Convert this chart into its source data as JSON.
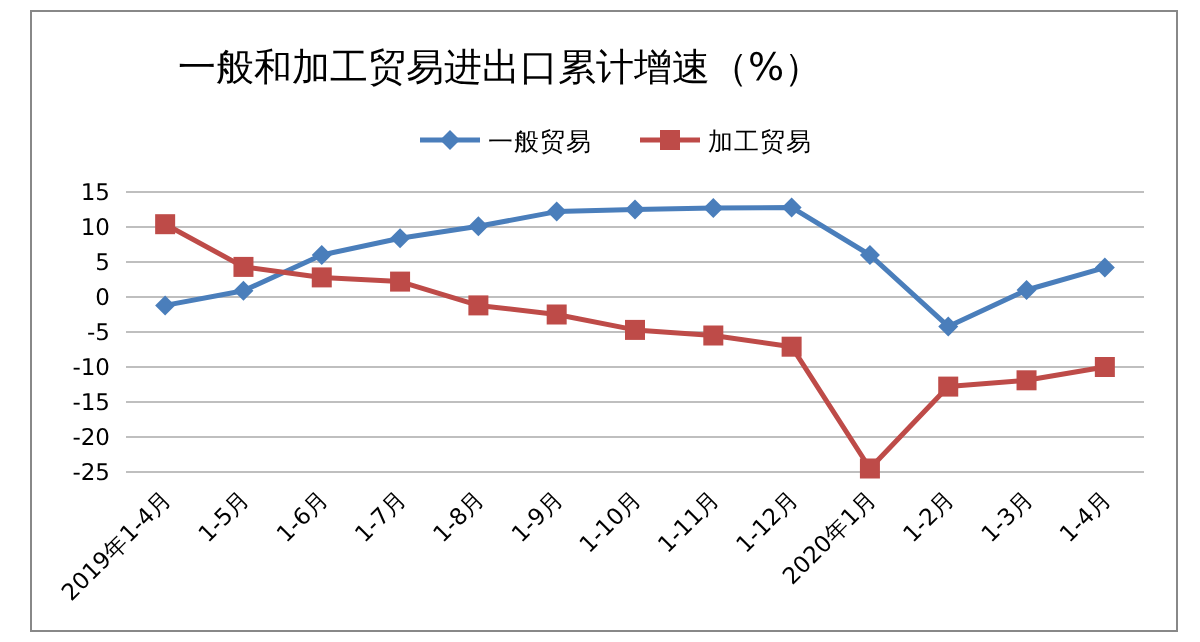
{
  "chart_data": {
    "type": "line",
    "title": "一般和加工贸易进出口累计增速（%）",
    "categories": [
      "2019年1-4月",
      "1-5月",
      "1-6月",
      "1-7月",
      "1-8月",
      "1-9月",
      "1-10月",
      "1-11月",
      "1-12月",
      "2020年1月",
      "1-2月",
      "1-3月",
      "1-4月"
    ],
    "series": [
      {
        "name": "一般贸易",
        "color": "#4a7ebb",
        "marker": "diamond",
        "values": [
          -1.2,
          0.9,
          6.0,
          8.4,
          10.1,
          12.2,
          12.5,
          12.7,
          12.8,
          6.0,
          -4.2,
          1.0,
          4.2
        ]
      },
      {
        "name": "加工贸易",
        "color": "#be4b48",
        "marker": "square",
        "values": [
          10.4,
          4.3,
          2.8,
          2.2,
          -1.2,
          -2.5,
          -4.7,
          -5.5,
          -7.1,
          -24.5,
          -12.8,
          -11.9,
          -10.0
        ]
      }
    ],
    "ylim": [
      -25,
      15
    ],
    "yticks": [
      -25,
      -20,
      -15,
      -10,
      -5,
      0,
      5,
      10,
      15
    ],
    "grid": "y",
    "legend": "top"
  }
}
